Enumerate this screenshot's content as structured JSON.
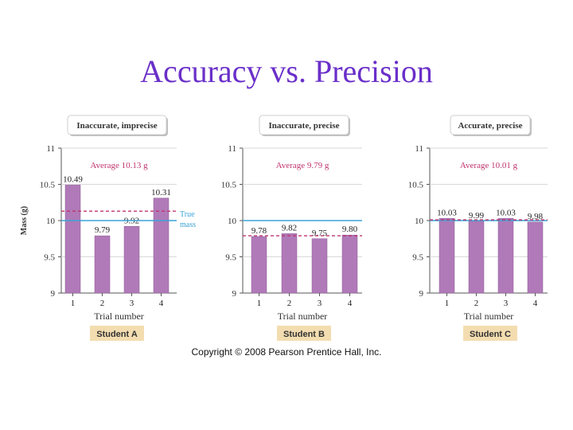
{
  "slide": {
    "title": "Accuracy vs. Precision",
    "copyright": "Copyright © 2008 Pearson Prentice Hall, Inc."
  },
  "colors": {
    "title": "#6a2fc9",
    "bar": "#b07ab8",
    "bar_edge": "#8e5a98",
    "true_line": "#3aa3d6",
    "avg_line": "#c0336e",
    "avg_text": "#c0336e",
    "student_badge": "#f3ddb0",
    "grid": "#d9d9d9"
  },
  "chart_data": [
    {
      "type": "bar",
      "title": "Inaccurate, imprecise",
      "student": "Student A",
      "categories": [
        "1",
        "2",
        "3",
        "4"
      ],
      "values": [
        10.49,
        9.79,
        9.92,
        10.31
      ],
      "data_labels": [
        "10.49",
        "9.79",
        "9.92",
        "10.31"
      ],
      "average": 10.13,
      "average_label": "Average 10.13 g",
      "true_mass": 10,
      "true_mass_label": [
        "True",
        "mass"
      ],
      "ylim": [
        9,
        11
      ],
      "yticks": [
        "9",
        "9.5",
        "10",
        "10.5",
        "11"
      ],
      "ylabel": "Mass (g)",
      "xlabel": "Trial number"
    },
    {
      "type": "bar",
      "title": "Inaccurate, precise",
      "student": "Student B",
      "categories": [
        "1",
        "2",
        "3",
        "4"
      ],
      "values": [
        9.78,
        9.82,
        9.75,
        9.8
      ],
      "data_labels": [
        "9.78",
        "9.82",
        "9.75",
        "9.80"
      ],
      "average": 9.79,
      "average_label": "Average 9.79 g",
      "true_mass": 10,
      "ylim": [
        9,
        11
      ],
      "yticks": [
        "9",
        "9.5",
        "10",
        "10.5",
        "11"
      ],
      "xlabel": "Trial number"
    },
    {
      "type": "bar",
      "title": "Accurate, precise",
      "student": "Student C",
      "categories": [
        "1",
        "2",
        "3",
        "4"
      ],
      "values": [
        10.03,
        9.99,
        10.03,
        9.98
      ],
      "data_labels": [
        "10.03",
        "9.99",
        "10.03",
        "9.98"
      ],
      "average": 10.01,
      "average_label": "Average 10.01 g",
      "true_mass": 10,
      "ylim": [
        9,
        11
      ],
      "yticks": [
        "9",
        "9.5",
        "10",
        "10.5",
        "11"
      ],
      "xlabel": "Trial number"
    }
  ]
}
